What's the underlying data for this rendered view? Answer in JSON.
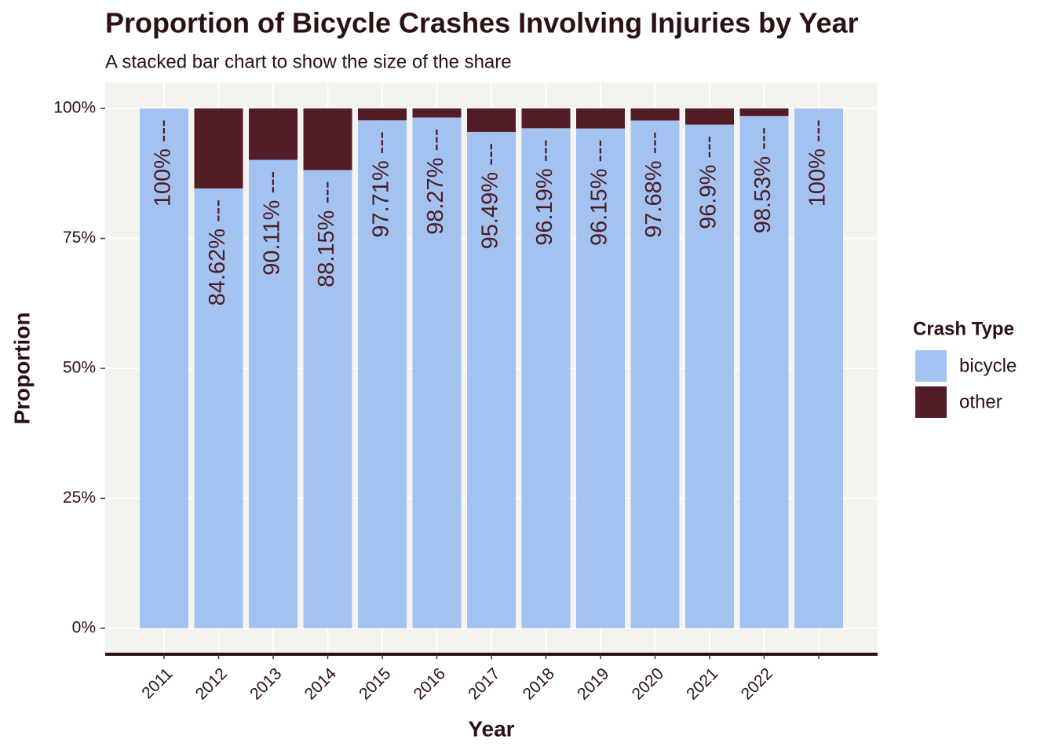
{
  "chart_data": {
    "type": "stacked_bar",
    "title": "Proportion of Bicycle Crashes Involving Injuries by Year",
    "subtitle": "A stacked bar chart to show the size of the share",
    "x_label": "Year",
    "y_label": "Proportion",
    "legend_title": "Crash Type",
    "legend_position": "right",
    "grid": true,
    "categories": [
      "2011",
      "2012",
      "2013",
      "2014",
      "2015",
      "2016",
      "2017",
      "2018",
      "2019",
      "2020",
      "2021",
      "2022",
      null
    ],
    "series": [
      {
        "name": "bicycle",
        "color": "#a4c2f0",
        "values": [
          1,
          0.8462,
          0.9011,
          0.8815,
          0.9771,
          0.9827,
          0.9549,
          0.9619,
          0.9615,
          0.9768,
          0.969,
          0.9853,
          1
        ],
        "value_labels": [
          "100% ---",
          "84.62% ---",
          "90.11% ---",
          "88.15% ---",
          "97.71% ---",
          "98.27% ---",
          "95.49% ---",
          "96.19% ---",
          "96.15% ---",
          "97.68% ---",
          "96.9% ---",
          "98.53% ---",
          "100% ---"
        ]
      },
      {
        "name": "other",
        "color": "#521d26",
        "values": [
          0,
          0.1538,
          0.0989,
          0.1185,
          0.0229,
          0.0173,
          0.0451,
          0.0381,
          0.0385,
          0.0232,
          0.031,
          0.0147,
          0
        ]
      }
    ],
    "ylim": [
      -0.05,
      1.05
    ],
    "yticks": [
      {
        "value": 0,
        "label": "0%"
      },
      {
        "value": 0.25,
        "label": "25%"
      },
      {
        "value": 0.5,
        "label": "50%"
      },
      {
        "value": 0.75,
        "label": "75%"
      },
      {
        "value": 1,
        "label": "100%"
      }
    ]
  }
}
